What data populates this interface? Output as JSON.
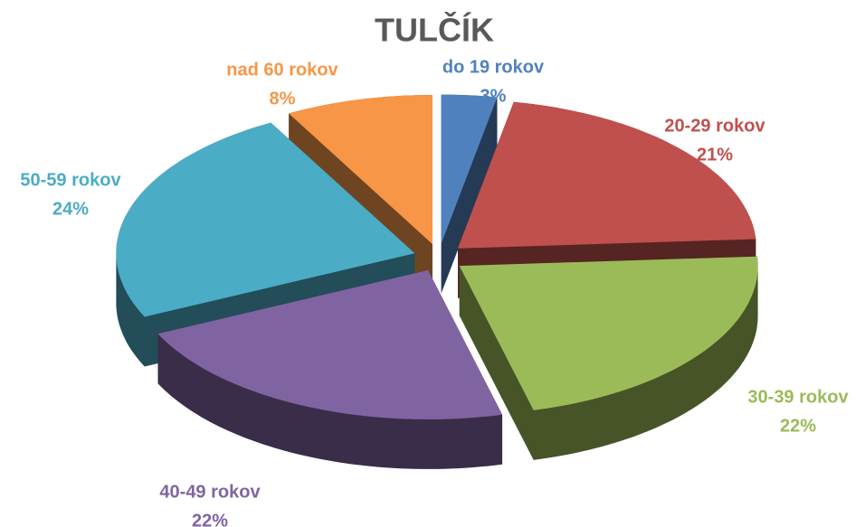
{
  "chart_data": {
    "type": "pie",
    "title": "TULČÍK",
    "categories": [
      "do 19 rokov",
      "20-29 rokov",
      "30-39 rokov",
      "40-49 rokov",
      "50-59 rokov",
      "nad 60 rokov"
    ],
    "values": [
      3,
      21,
      22,
      22,
      24,
      8
    ],
    "value_labels": [
      "3%",
      "21%",
      "22%",
      "22%",
      "24%",
      "8%"
    ],
    "colors": [
      "#4f81bd",
      "#c0504d",
      "#9bbb59",
      "#8064a2",
      "#4bacc6",
      "#f79646"
    ]
  }
}
